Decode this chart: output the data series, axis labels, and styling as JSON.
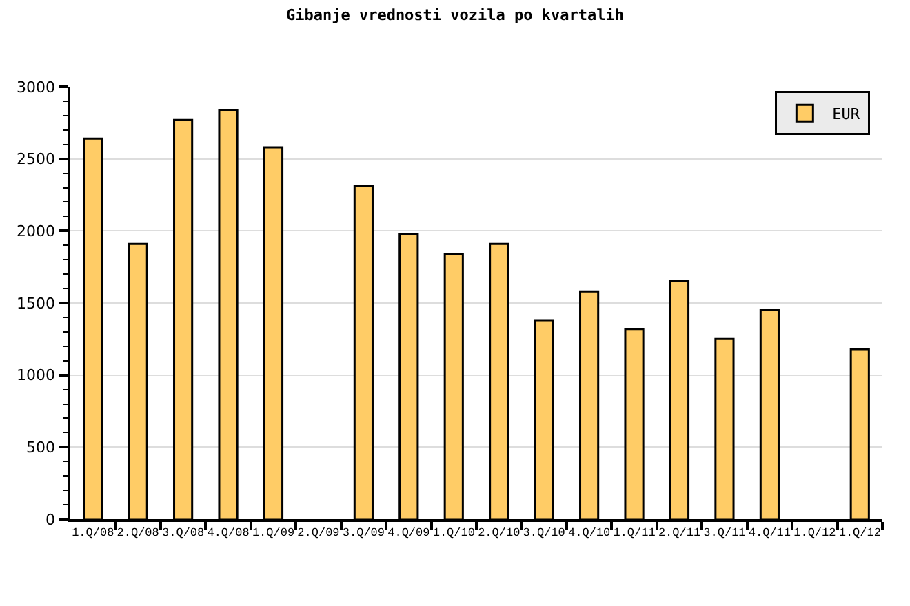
{
  "chart_data": {
    "type": "bar",
    "title": "Gibanje vrednosti vozila po kvartalih",
    "categories": [
      "1.Q/08",
      "2.Q/08",
      "3.Q/08",
      "4.Q/08",
      "1.Q/09",
      "2.Q/09",
      "3.Q/09",
      "4.Q/09",
      "1.Q/10",
      "2.Q/10",
      "3.Q/10",
      "4.Q/10",
      "1.Q/11",
      "2.Q/11",
      "3.Q/11",
      "4.Q/11",
      "1.Q/12",
      "1.Q/12"
    ],
    "series": [
      {
        "name": "EUR",
        "color": "#ffcc66",
        "values": [
          2640,
          1910,
          2770,
          2840,
          2580,
          null,
          2310,
          1980,
          1840,
          1910,
          1380,
          1580,
          1320,
          1650,
          1250,
          1450,
          null,
          1180
        ]
      }
    ],
    "ylim": [
      0,
      3000
    ],
    "yticks": [
      0,
      {
        "value": 100,
        "label": null
      },
      {
        "value": 200,
        "label": null
      },
      {
        "value": 300,
        "label": null
      },
      {
        "value": 400,
        "label": null
      },
      500,
      {
        "value": 600,
        "label": null
      },
      {
        "value": 700,
        "label": null
      },
      {
        "value": 800,
        "label": null
      },
      {
        "value": 900,
        "label": null
      },
      1000,
      {
        "value": 1100,
        "label": null
      },
      {
        "value": 1200,
        "label": null
      },
      {
        "value": 1300,
        "label": null
      },
      {
        "value": 1400,
        "label": null
      },
      1500,
      {
        "value": 1600,
        "label": null
      },
      {
        "value": 1700,
        "label": null
      },
      {
        "value": 1800,
        "label": null
      },
      {
        "value": 1900,
        "label": null
      },
      2000,
      {
        "value": 2100,
        "label": null
      },
      {
        "value": 2200,
        "label": null
      },
      {
        "value": 2300,
        "label": null
      },
      {
        "value": 2400,
        "label": null
      },
      2500,
      {
        "value": 2600,
        "label": null
      },
      {
        "value": 2700,
        "label": null
      },
      {
        "value": 2800,
        "label": null
      },
      {
        "value": 2900,
        "label": null
      },
      3000
    ],
    "grid": "y",
    "legend": "top right"
  }
}
